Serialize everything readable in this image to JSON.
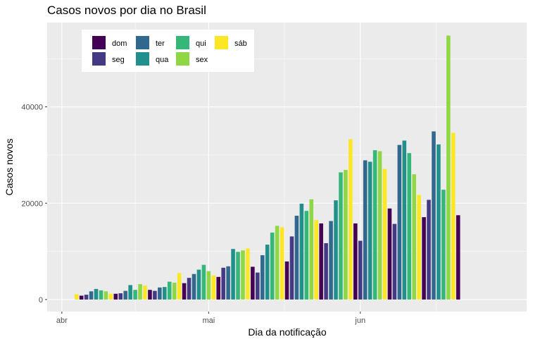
{
  "chart_data": {
    "type": "bar",
    "title": "Casos novos por dia no Brasil",
    "xlabel": "Dia da notificação",
    "ylabel": "Casos novos",
    "x_ticks": [
      {
        "label": "abr",
        "date": "2020-04-01"
      },
      {
        "label": "mai",
        "date": "2020-05-01"
      },
      {
        "label": "jun",
        "date": "2020-06-01"
      }
    ],
    "y_ticks": [
      0,
      20000,
      40000
    ],
    "xlim": [
      "2020-03-29",
      "2020-07-05"
    ],
    "ylim": [
      -2500,
      57500
    ],
    "grid": true,
    "legend": {
      "title": "",
      "placement": "top-left",
      "entries": [
        {
          "label": "dom",
          "color": "#440154"
        },
        {
          "label": "seg",
          "color": "#443A83"
        },
        {
          "label": "ter",
          "color": "#31688E"
        },
        {
          "label": "qua",
          "color": "#21908C"
        },
        {
          "label": "qui",
          "color": "#35B779"
        },
        {
          "label": "sex",
          "color": "#8FD744"
        },
        {
          "label": "sáb",
          "color": "#FDE725"
        }
      ]
    },
    "first_date": "2020-04-04",
    "values": [
      1100,
      800,
      1000,
      1700,
      2200,
      1900,
      1700,
      1200,
      1200,
      1300,
      1800,
      3000,
      2000,
      3200,
      2900,
      2000,
      1800,
      2500,
      2600,
      3700,
      3500,
      5500,
      3400,
      4500,
      5300,
      6200,
      7200,
      5900,
      5000,
      4700,
      6600,
      6900,
      10500,
      9900,
      10200,
      10600,
      6800,
      5600,
      9200,
      11400,
      13900,
      15300,
      15000,
      7900,
      13100,
      17400,
      19900,
      18400,
      20800,
      16500,
      15800,
      11700,
      16300,
      20600,
      26400,
      26900,
      33300,
      15800,
      12200,
      28900,
      28600,
      31000,
      30800,
      27100,
      18900,
      15700,
      32100,
      33000,
      30400,
      26000,
      21700,
      17100,
      20700,
      34900,
      32200,
      22800,
      54800,
      34600,
      17500
    ]
  }
}
